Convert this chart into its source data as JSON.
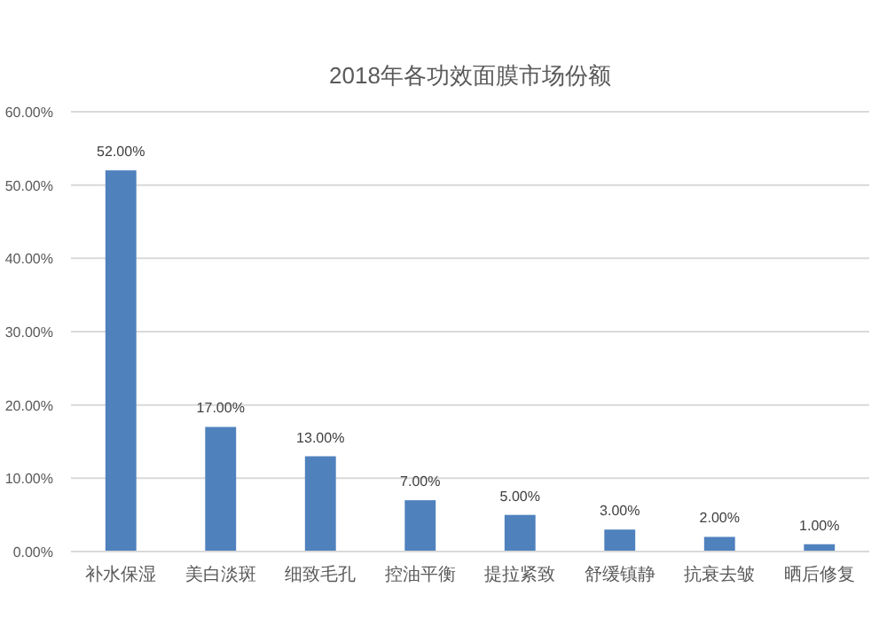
{
  "chart_data": {
    "type": "bar",
    "title": "2018年各功效面膜市场份额",
    "categories": [
      "补水保湿",
      "美白淡斑",
      "细致毛孔",
      "控油平衡",
      "提拉紧致",
      "舒缓镇静",
      "抗衰去皱",
      "晒后修复"
    ],
    "values": [
      52,
      17,
      13,
      7,
      5,
      3,
      2,
      1
    ],
    "value_labels": [
      "52.00%",
      "17.00%",
      "13.00%",
      "7.00%",
      "5.00%",
      "3.00%",
      "2.00%",
      "1.00%"
    ],
    "color": "#4f81bd",
    "ylim": [
      0,
      60
    ],
    "yticks": [
      {
        "value": 0,
        "label": "0.00%"
      },
      {
        "value": 10,
        "label": "10.00%"
      },
      {
        "value": 20,
        "label": "20.00%"
      },
      {
        "value": 30,
        "label": "30.00%"
      },
      {
        "value": 40,
        "label": "40.00%"
      },
      {
        "value": 50,
        "label": "50.00%"
      },
      {
        "value": 60,
        "label": "60.00%"
      }
    ],
    "grid": "y"
  }
}
